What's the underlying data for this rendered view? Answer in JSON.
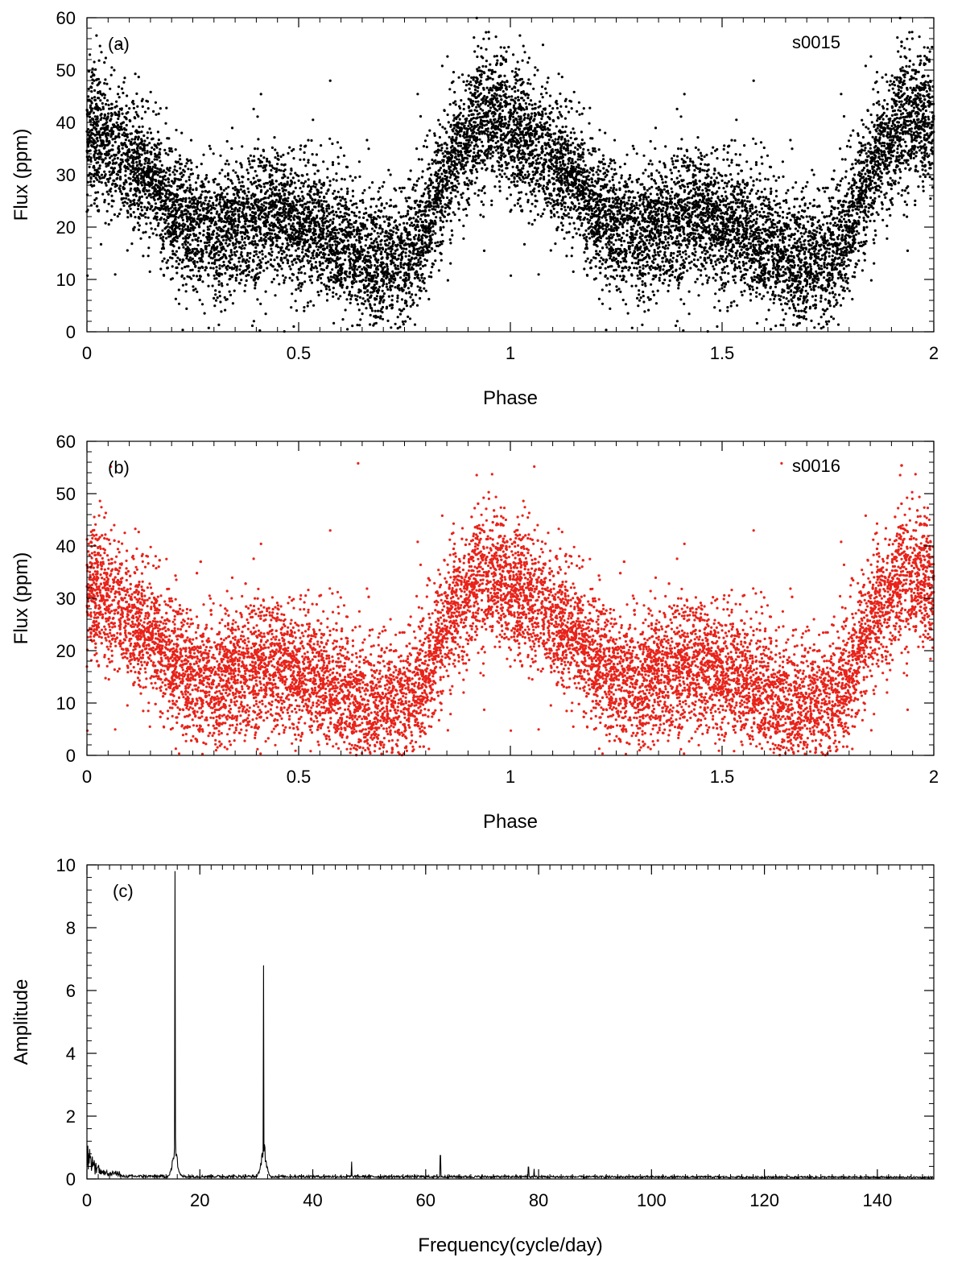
{
  "chart_data": [
    {
      "type": "scatter",
      "panel_label": "(a)",
      "legend": "s0015",
      "legend_placement": "top-right",
      "xlabel": "Phase",
      "ylabel": "Flux (ppm)",
      "xlim": [
        0,
        2
      ],
      "ylim": [
        0,
        60
      ],
      "xticks": [
        0,
        0.5,
        1,
        1.5,
        2
      ],
      "yticks": [
        0,
        10,
        20,
        30,
        40,
        50,
        60
      ],
      "color": "#000000",
      "profile": {
        "phase": [
          0.0,
          0.05,
          0.1,
          0.15,
          0.2,
          0.25,
          0.3,
          0.35,
          0.4,
          0.45,
          0.5,
          0.55,
          0.6,
          0.65,
          0.7,
          0.75,
          0.8,
          0.85,
          0.9,
          0.95,
          1.0
        ],
        "flux": [
          38,
          36,
          33,
          29,
          24,
          20,
          19,
          20,
          21,
          22,
          21,
          19,
          17,
          15,
          13,
          14,
          20,
          30,
          38,
          41,
          40
        ],
        "scatter_ppm": 6
      }
    },
    {
      "type": "scatter",
      "panel_label": "(b)",
      "legend": "s0016",
      "legend_placement": "top-right",
      "xlabel": "Phase",
      "ylabel": "Flux (ppm)",
      "xlim": [
        0,
        2
      ],
      "ylim": [
        0,
        60
      ],
      "xticks": [
        0,
        0.5,
        1,
        1.5,
        2
      ],
      "yticks": [
        0,
        10,
        20,
        30,
        40,
        50,
        60
      ],
      "color": "#e8231a",
      "profile": {
        "phase": [
          0.0,
          0.05,
          0.1,
          0.15,
          0.2,
          0.25,
          0.3,
          0.35,
          0.4,
          0.45,
          0.5,
          0.55,
          0.6,
          0.65,
          0.7,
          0.75,
          0.8,
          0.85,
          0.9,
          0.95,
          1.0
        ],
        "flux": [
          32,
          30,
          27,
          23,
          19,
          15,
          14,
          15,
          16,
          17,
          16,
          14,
          12,
          10,
          9,
          10,
          15,
          25,
          32,
          34,
          33
        ],
        "scatter_ppm": 6
      }
    },
    {
      "type": "line",
      "panel_label": "(c)",
      "xlabel": "Frequency(cycle/day)",
      "ylabel": "Amplitude",
      "xlim": [
        0,
        150
      ],
      "ylim": [
        0,
        10
      ],
      "xticks": [
        0,
        20,
        40,
        60,
        80,
        100,
        120,
        140
      ],
      "yticks": [
        0,
        2,
        4,
        6,
        8,
        10
      ],
      "color": "#000000",
      "peaks": [
        {
          "x": 15.6,
          "y": 9.8
        },
        {
          "x": 31.3,
          "y": 6.8
        },
        {
          "x": 46.9,
          "y": 0.55
        },
        {
          "x": 62.6,
          "y": 0.75
        },
        {
          "x": 78.2,
          "y": 0.38
        },
        {
          "x": 79.2,
          "y": 0.32
        }
      ],
      "noise_level": 0.1
    }
  ]
}
